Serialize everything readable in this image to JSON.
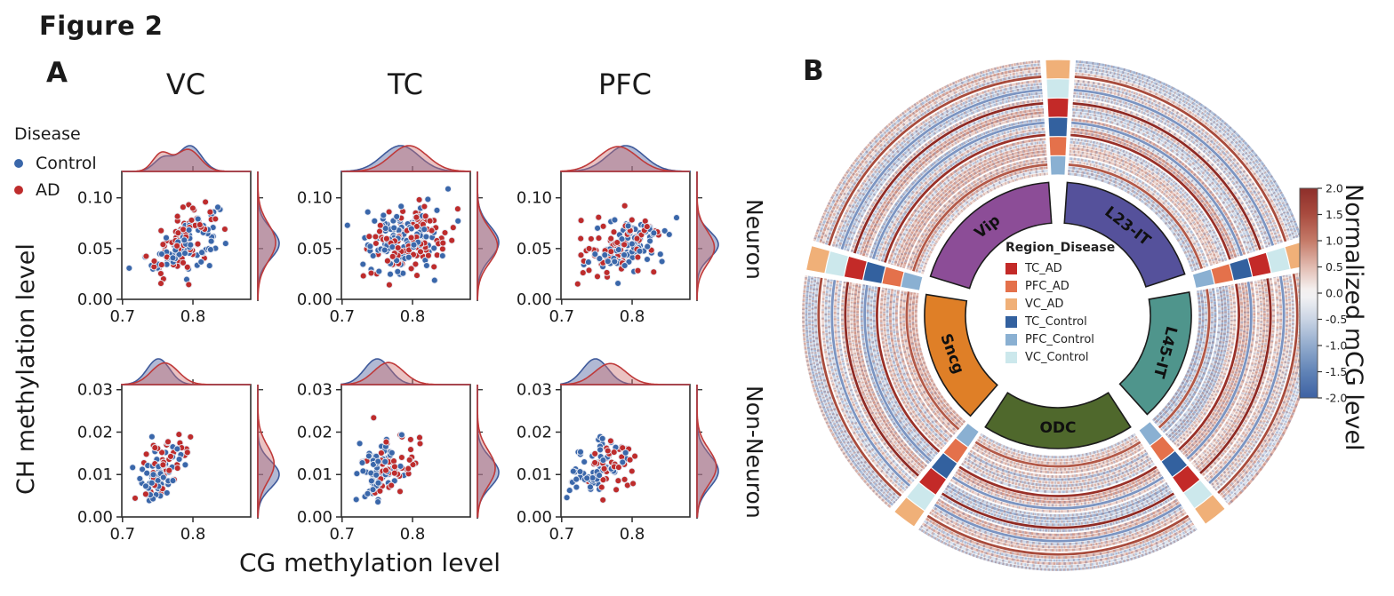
{
  "figure_title": "Figure 2",
  "panel_a": {
    "label": "A",
    "column_titles": [
      "VC",
      "TC",
      "PFC"
    ],
    "row_titles": [
      "Neuron",
      "Non-Neuron"
    ],
    "x_label": "CG methylation level",
    "y_label": "CH methylation level",
    "legend": {
      "title": "Disease",
      "items": [
        {
          "label": "Control",
          "color": "#3a67aa"
        },
        {
          "label": "AD",
          "color": "#be2c2c"
        }
      ]
    }
  },
  "panel_b": {
    "label": "B",
    "legend": {
      "title": "Region_Disease",
      "items": [
        {
          "label": "TC_AD",
          "color": "#c32a28"
        },
        {
          "label": "PFC_AD",
          "color": "#e4714b"
        },
        {
          "label": "VC_AD",
          "color": "#f0b078"
        },
        {
          "label": "TC_Control",
          "color": "#33619f"
        },
        {
          "label": "PFC_Control",
          "color": "#8ab0d2"
        },
        {
          "label": "VC_Control",
          "color": "#cce8ec"
        }
      ]
    },
    "colorbar": {
      "label": "Normalized mCG level",
      "tick_labels": [
        "2.0",
        "1.5",
        "1.0",
        "0.5",
        "0.0",
        "-0.5",
        "-1.0",
        "-1.5",
        "-2.0"
      ],
      "vmin": -2.0,
      "vmax": 2.0
    }
  },
  "chart_data": [
    {
      "type": "scatter",
      "panel": "A",
      "description": "Joint scatter plots of CG vs CH methylation level per brain region (VC, TC, PFC) for Neuron and Non-Neuron populations, with top and right KDE marginals per Disease group",
      "x_ticks": [
        "0.7",
        "0.8"
      ],
      "x_lim": [
        0.699,
        0.882
      ],
      "subplots": [
        {
          "row": "Neuron",
          "col": "VC",
          "y_ticks": [
            "0.00",
            "0.05",
            "0.10"
          ],
          "y_lim": [
            0,
            0.126
          ],
          "series": [
            {
              "name": "Control",
              "n": 85,
              "mx": 0.79,
              "sx": 0.023,
              "my": 0.055,
              "sy": 0.015,
              "corr": 0.55,
              "x_kde": [
                {
                  "mu": 0.758,
                  "sd": 0.013,
                  "w": 0.3
                },
                {
                  "mu": 0.796,
                  "sd": 0.016,
                  "w": 0.7
                }
              ]
            },
            {
              "name": "AD",
              "n": 70,
              "mx": 0.783,
              "sx": 0.024,
              "my": 0.056,
              "sy": 0.018,
              "corr": 0.55,
              "x_kde": [
                {
                  "mu": 0.755,
                  "sd": 0.012,
                  "w": 0.36
                },
                {
                  "mu": 0.793,
                  "sd": 0.017,
                  "w": 0.64
                }
              ]
            }
          ]
        },
        {
          "row": "Neuron",
          "col": "TC",
          "y_ticks": [
            "0.00",
            "0.05",
            "0.10"
          ],
          "y_lim": [
            0,
            0.126
          ],
          "series": [
            {
              "name": "Control",
              "n": 125,
              "mx": 0.783,
              "sx": 0.026,
              "my": 0.056,
              "sy": 0.016,
              "corr": 0.3
            },
            {
              "name": "AD",
              "n": 110,
              "mx": 0.795,
              "sx": 0.026,
              "my": 0.053,
              "sy": 0.017,
              "corr": 0.35
            }
          ]
        },
        {
          "row": "Neuron",
          "col": "PFC",
          "y_ticks": [
            "0.00",
            "0.05",
            "0.10"
          ],
          "y_lim": [
            0,
            0.126
          ],
          "series": [
            {
              "name": "Control",
              "n": 90,
              "mx": 0.791,
              "sx": 0.026,
              "my": 0.054,
              "sy": 0.013,
              "corr": 0.35
            },
            {
              "name": "AD",
              "n": 75,
              "mx": 0.78,
              "sx": 0.027,
              "my": 0.051,
              "sy": 0.016,
              "corr": 0.4
            }
          ]
        },
        {
          "row": "Non-Neuron",
          "col": "VC",
          "y_ticks": [
            "0.00",
            "0.01",
            "0.02",
            "0.03"
          ],
          "y_lim": [
            0,
            0.0312
          ],
          "series": [
            {
              "name": "Control",
              "n": 55,
              "mx": 0.751,
              "sx": 0.016,
              "my": 0.01,
              "sy": 0.0032,
              "corr": 0.5
            },
            {
              "name": "AD",
              "n": 42,
              "mx": 0.76,
              "sx": 0.019,
              "my": 0.0125,
              "sy": 0.0042,
              "corr": 0.55
            }
          ]
        },
        {
          "row": "Non-Neuron",
          "col": "TC",
          "y_ticks": [
            "0.00",
            "0.01",
            "0.02",
            "0.03"
          ],
          "y_lim": [
            0,
            0.0312
          ],
          "series": [
            {
              "name": "Control",
              "n": 65,
              "mx": 0.75,
              "sx": 0.018,
              "my": 0.0105,
              "sy": 0.0035,
              "corr": 0.35
            },
            {
              "name": "AD",
              "n": 52,
              "mx": 0.766,
              "sx": 0.021,
              "my": 0.0115,
              "sy": 0.0042,
              "corr": 0.35
            }
          ]
        },
        {
          "row": "Non-Neuron",
          "col": "PFC",
          "y_ticks": [
            "0.00",
            "0.01",
            "0.02",
            "0.03"
          ],
          "y_lim": [
            0,
            0.0312
          ],
          "series": [
            {
              "name": "Control",
              "n": 58,
              "mx": 0.748,
              "sx": 0.018,
              "my": 0.0108,
              "sy": 0.0038,
              "corr": 0.3
            },
            {
              "name": "AD",
              "n": 47,
              "mx": 0.769,
              "sx": 0.022,
              "my": 0.0118,
              "sy": 0.0042,
              "corr": 0.35
            }
          ]
        }
      ]
    },
    {
      "type": "heatmap",
      "subtype": "circular",
      "panel": "B",
      "description": "Circular heatmap of normalized mCG level across genes (rings grouped by Region_Disease) for five cell-type sectors",
      "value_range": [
        -2.0,
        2.0
      ],
      "rings_per_group": 6,
      "ring_groups_outer_to_inner": [
        "VC_AD",
        "VC_Control",
        "TC_AD",
        "TC_Control",
        "PFC_AD",
        "PFC_Control"
      ],
      "sectors": [
        {
          "name": "L23-IT",
          "start_deg": 4,
          "end_deg": 72,
          "color": "#55519b",
          "label_rot": 38,
          "group_bias": [
            -0.25,
            0.2,
            0.3,
            -0.2,
            0.15,
            -0.1
          ]
        },
        {
          "name": "L45-IT",
          "start_deg": 80,
          "end_deg": 138,
          "color": "#4f958c",
          "label_rot": 105,
          "group_bias": [
            -0.45,
            -0.25,
            0.25,
            0.2,
            -0.15,
            0.3
          ]
        },
        {
          "name": "ODC",
          "start_deg": 147,
          "end_deg": 213,
          "color": "#4f682c",
          "label_rot": 0,
          "group_bias": [
            0.2,
            -0.2,
            0.25,
            -0.35,
            0.2,
            0.15
          ]
        },
        {
          "name": "Sncg",
          "start_deg": 221,
          "end_deg": 279,
          "color": "#df7f27",
          "label_rot": 70,
          "group_bias": [
            0.25,
            0.2,
            -0.3,
            0.2,
            0.15,
            -0.2
          ]
        },
        {
          "name": "Vip",
          "start_deg": 287,
          "end_deg": 356,
          "color": "#8c4d97",
          "label_rot": -38,
          "group_bias": [
            0.2,
            0.15,
            -0.2,
            0.3,
            -0.15,
            0.1
          ]
        }
      ],
      "highlight_rings": [
        {
          "index": 3,
          "color": "#b25847"
        },
        {
          "index": 12,
          "color": "#993028"
        },
        {
          "index": 22,
          "color": "#8f2a24"
        },
        {
          "index": 30,
          "color": "#a84b3c"
        },
        {
          "index": 16,
          "color": "#7b94c1"
        },
        {
          "index": 26,
          "color": "#7b94c1"
        }
      ]
    }
  ]
}
